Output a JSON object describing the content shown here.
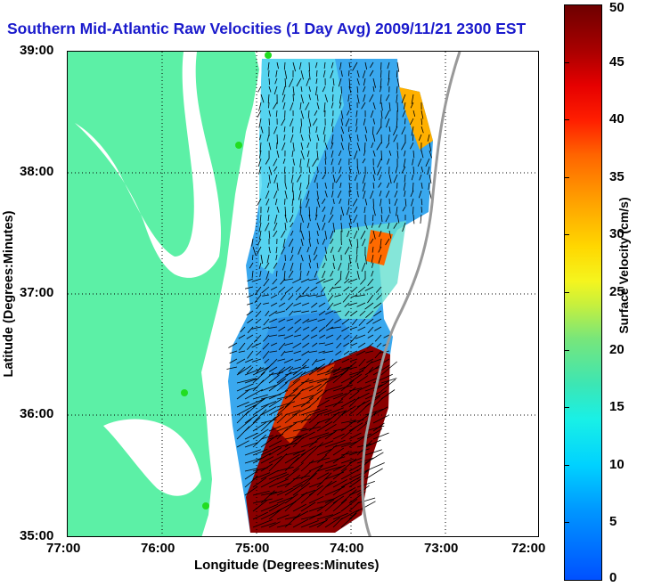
{
  "title": "Southern Mid-Atlantic Raw Velocities (1 Day Avg) 2009/11/21 2300 EST",
  "x_axis": {
    "label": "Longitude (Degrees:Minutes)",
    "ticks": [
      "77:00",
      "76:00",
      "75:00",
      "74:00",
      "73:00",
      "72:00"
    ]
  },
  "y_axis": {
    "label": "Latitude (Degrees:Minutes)",
    "ticks": [
      "39:00",
      "38:00",
      "37:00",
      "36:00",
      "35:00"
    ]
  },
  "colorbar": {
    "label": "Surface Velocity (cm/s)",
    "ticks": [
      "50",
      "45",
      "40",
      "35",
      "30",
      "25",
      "20",
      "15",
      "10",
      "5",
      "0"
    ],
    "min": 0,
    "max": 50
  },
  "colors": {
    "land": "#5cf0a6",
    "title": "#1a1acc",
    "field_low": "#2a9df4",
    "field_mid": "#5cf0a6",
    "field_high": "#7a0000"
  }
}
